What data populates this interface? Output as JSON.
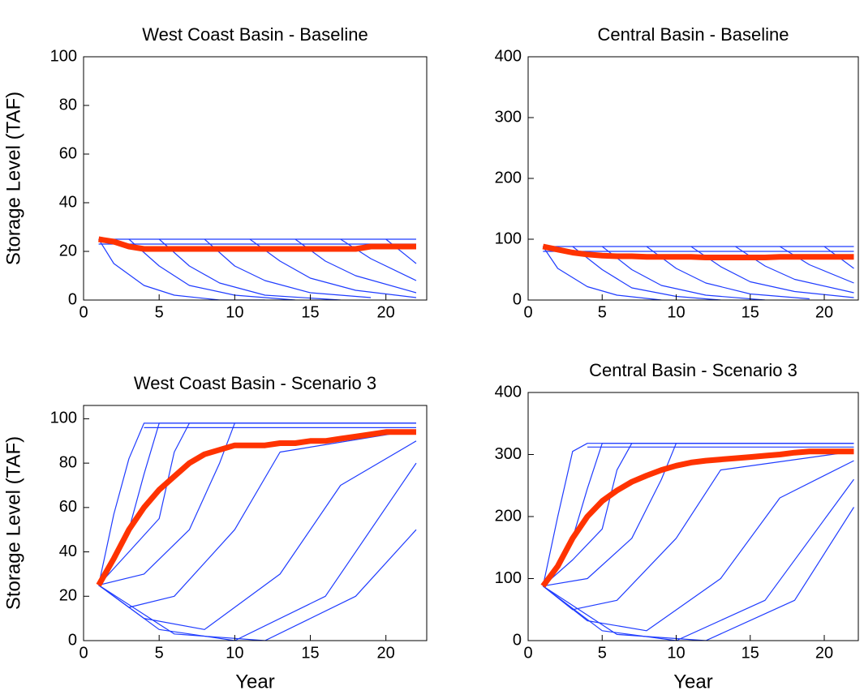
{
  "chart_data": [
    {
      "type": "line",
      "title": "West Coast Basin - Baseline",
      "ylabel": "Storage Level (TAF)",
      "xlim": [
        0,
        22.7
      ],
      "xticks": [
        0,
        5,
        10,
        15,
        20
      ],
      "ylim": [
        0,
        100
      ],
      "yticks": [
        0,
        20,
        40,
        60,
        80,
        100
      ],
      "series": [
        {
          "color": "#1f3cff",
          "x": [
            1,
            22
          ],
          "values": [
            25,
            25
          ]
        },
        {
          "color": "#1f3cff",
          "x": [
            1,
            22
          ],
          "values": [
            23,
            23
          ]
        },
        {
          "color": "#1f3cff",
          "x": [
            1,
            2,
            4,
            6,
            9,
            12
          ],
          "values": [
            25,
            15,
            6,
            2,
            0,
            0
          ]
        },
        {
          "color": "#1f3cff",
          "x": [
            3,
            5,
            7,
            10,
            14
          ],
          "values": [
            25,
            14,
            6,
            2,
            0
          ]
        },
        {
          "color": "#1f3cff",
          "x": [
            5,
            7,
            9,
            12,
            17
          ],
          "values": [
            25,
            14,
            7,
            2,
            0
          ]
        },
        {
          "color": "#1f3cff",
          "x": [
            8,
            10,
            12,
            15,
            19
          ],
          "values": [
            25,
            14,
            8,
            3,
            1
          ]
        },
        {
          "color": "#1f3cff",
          "x": [
            11,
            13,
            15,
            18,
            22
          ],
          "values": [
            25,
            16,
            9,
            4,
            1
          ]
        },
        {
          "color": "#1f3cff",
          "x": [
            14,
            16,
            18,
            22
          ],
          "values": [
            25,
            16,
            10,
            3
          ]
        },
        {
          "color": "#1f3cff",
          "x": [
            17,
            19,
            22
          ],
          "values": [
            25,
            17,
            8
          ]
        },
        {
          "color": "#1f3cff",
          "x": [
            20,
            22
          ],
          "values": [
            25,
            15
          ]
        },
        {
          "color": "#ff3300",
          "width": 7,
          "x": [
            1,
            2,
            3,
            4,
            5,
            6,
            7,
            8,
            9,
            10,
            11,
            12,
            13,
            14,
            15,
            16,
            17,
            18,
            19,
            20,
            21,
            22
          ],
          "values": [
            25,
            24,
            22,
            21,
            21,
            21,
            21,
            21,
            21,
            21,
            21,
            21,
            21,
            21,
            21,
            21,
            21,
            21,
            22,
            22,
            22,
            22
          ]
        }
      ]
    },
    {
      "type": "line",
      "title": "Central Basin - Baseline",
      "xlim": [
        0,
        22.3
      ],
      "xticks": [
        0,
        5,
        10,
        15,
        20
      ],
      "ylim": [
        0,
        400
      ],
      "yticks": [
        0,
        100,
        200,
        300,
        400
      ],
      "series": [
        {
          "color": "#1f3cff",
          "x": [
            1,
            22
          ],
          "values": [
            88,
            88
          ]
        },
        {
          "color": "#1f3cff",
          "x": [
            1,
            22
          ],
          "values": [
            80,
            80
          ]
        },
        {
          "color": "#1f3cff",
          "x": [
            1,
            2,
            4,
            6,
            9
          ],
          "values": [
            88,
            52,
            22,
            8,
            0
          ]
        },
        {
          "color": "#1f3cff",
          "x": [
            3,
            5,
            7,
            10,
            13
          ],
          "values": [
            88,
            50,
            20,
            6,
            0
          ]
        },
        {
          "color": "#1f3cff",
          "x": [
            5,
            7,
            9,
            12,
            16
          ],
          "values": [
            88,
            50,
            24,
            8,
            0
          ]
        },
        {
          "color": "#1f3cff",
          "x": [
            8,
            10,
            12,
            15,
            19
          ],
          "values": [
            88,
            52,
            28,
            10,
            2
          ]
        },
        {
          "color": "#1f3cff",
          "x": [
            11,
            13,
            15,
            18,
            22
          ],
          "values": [
            88,
            55,
            30,
            14,
            4
          ]
        },
        {
          "color": "#1f3cff",
          "x": [
            14,
            16,
            18,
            22
          ],
          "values": [
            88,
            56,
            34,
            12
          ]
        },
        {
          "color": "#1f3cff",
          "x": [
            17,
            19,
            22
          ],
          "values": [
            88,
            58,
            28
          ]
        },
        {
          "color": "#1f3cff",
          "x": [
            20,
            22
          ],
          "values": [
            88,
            52
          ]
        },
        {
          "color": "#ff3300",
          "width": 7,
          "x": [
            1,
            2,
            3,
            4,
            5,
            6,
            7,
            8,
            9,
            10,
            11,
            12,
            13,
            14,
            15,
            16,
            17,
            18,
            19,
            20,
            21,
            22
          ],
          "values": [
            88,
            83,
            78,
            75,
            73,
            72,
            72,
            71,
            71,
            71,
            71,
            70,
            70,
            70,
            70,
            70,
            71,
            71,
            71,
            71,
            71,
            71
          ]
        }
      ]
    },
    {
      "type": "line",
      "title": "West Coast Basin - Scenario 3",
      "ylabel": "Storage Level (TAF)",
      "xlabel": "Year",
      "xlim": [
        0,
        22.7
      ],
      "xticks": [
        0,
        5,
        10,
        15,
        20
      ],
      "ylim": [
        0,
        106
      ],
      "yticks": [
        0,
        20,
        40,
        60,
        80,
        100
      ],
      "series": [
        {
          "color": "#1f3cff",
          "x": [
            1,
            2,
            3,
            4,
            22
          ],
          "values": [
            25,
            57,
            82,
            98,
            98
          ]
        },
        {
          "color": "#1f3cff",
          "x": [
            1,
            3,
            4,
            5,
            22
          ],
          "values": [
            25,
            50,
            75,
            98,
            98
          ]
        },
        {
          "color": "#1f3cff",
          "x": [
            1,
            3,
            5,
            6,
            7,
            22
          ],
          "values": [
            25,
            40,
            55,
            85,
            98,
            98
          ]
        },
        {
          "color": "#1f3cff",
          "x": [
            1,
            4,
            7,
            9,
            10,
            22
          ],
          "values": [
            25,
            30,
            50,
            80,
            98,
            98
          ]
        },
        {
          "color": "#1f3cff",
          "x": [
            1,
            3,
            6,
            10,
            13,
            22
          ],
          "values": [
            25,
            15,
            20,
            50,
            85,
            95
          ]
        },
        {
          "color": "#1f3cff",
          "x": [
            1,
            4,
            8,
            13,
            17,
            22
          ],
          "values": [
            25,
            10,
            5,
            30,
            70,
            90
          ]
        },
        {
          "color": "#1f3cff",
          "x": [
            1,
            5,
            10,
            16,
            20,
            22
          ],
          "values": [
            25,
            5,
            0,
            20,
            60,
            80
          ]
        },
        {
          "color": "#1f3cff",
          "x": [
            1,
            6,
            12,
            18,
            22
          ],
          "values": [
            25,
            3,
            0,
            20,
            50
          ]
        },
        {
          "color": "#1f3cff",
          "x": [
            4,
            22
          ],
          "values": [
            96,
            96
          ]
        },
        {
          "color": "#ff3300",
          "width": 7,
          "x": [
            1,
            2,
            3,
            4,
            5,
            6,
            7,
            8,
            9,
            10,
            11,
            12,
            13,
            14,
            15,
            16,
            17,
            18,
            19,
            20,
            21,
            22
          ],
          "values": [
            25,
            37,
            50,
            60,
            68,
            74,
            80,
            84,
            86,
            88,
            88,
            88,
            89,
            89,
            90,
            90,
            91,
            92,
            93,
            94,
            94,
            94
          ]
        }
      ]
    },
    {
      "type": "line",
      "title": "Central Basin - Scenario 3",
      "xlabel": "Year",
      "xlim": [
        0,
        22.3
      ],
      "xticks": [
        0,
        5,
        10,
        15,
        20
      ],
      "ylim": [
        0,
        400
      ],
      "yticks": [
        0,
        100,
        200,
        300,
        400
      ],
      "series": [
        {
          "color": "#1f3cff",
          "x": [
            1,
            2,
            3,
            4,
            22
          ],
          "values": [
            88,
            200,
            305,
            318,
            318
          ]
        },
        {
          "color": "#1f3cff",
          "x": [
            1,
            3,
            4,
            5,
            22
          ],
          "values": [
            88,
            165,
            245,
            318,
            318
          ]
        },
        {
          "color": "#1f3cff",
          "x": [
            1,
            3,
            5,
            6,
            7,
            22
          ],
          "values": [
            88,
            130,
            180,
            275,
            318,
            318
          ]
        },
        {
          "color": "#1f3cff",
          "x": [
            1,
            4,
            7,
            9,
            10,
            22
          ],
          "values": [
            88,
            100,
            165,
            260,
            318,
            318
          ]
        },
        {
          "color": "#1f3cff",
          "x": [
            1,
            3,
            6,
            10,
            13,
            22
          ],
          "values": [
            88,
            50,
            65,
            165,
            275,
            305
          ]
        },
        {
          "color": "#1f3cff",
          "x": [
            1,
            4,
            8,
            13,
            17,
            22
          ],
          "values": [
            88,
            32,
            16,
            100,
            230,
            290
          ]
        },
        {
          "color": "#1f3cff",
          "x": [
            1,
            5,
            10,
            16,
            20,
            22
          ],
          "values": [
            88,
            16,
            0,
            65,
            195,
            260
          ]
        },
        {
          "color": "#1f3cff",
          "x": [
            1,
            6,
            12,
            18,
            22
          ],
          "values": [
            88,
            10,
            0,
            65,
            215
          ]
        },
        {
          "color": "#1f3cff",
          "x": [
            4,
            22
          ],
          "values": [
            312,
            312
          ]
        },
        {
          "color": "#ff3300",
          "width": 7,
          "x": [
            1,
            2,
            3,
            4,
            5,
            6,
            7,
            8,
            9,
            10,
            11,
            12,
            13,
            14,
            15,
            16,
            17,
            18,
            19,
            20,
            21,
            22
          ],
          "values": [
            88,
            120,
            165,
            200,
            225,
            242,
            256,
            266,
            275,
            282,
            287,
            290,
            292,
            294,
            296,
            298,
            300,
            303,
            305,
            305,
            305,
            305
          ]
        }
      ]
    }
  ]
}
